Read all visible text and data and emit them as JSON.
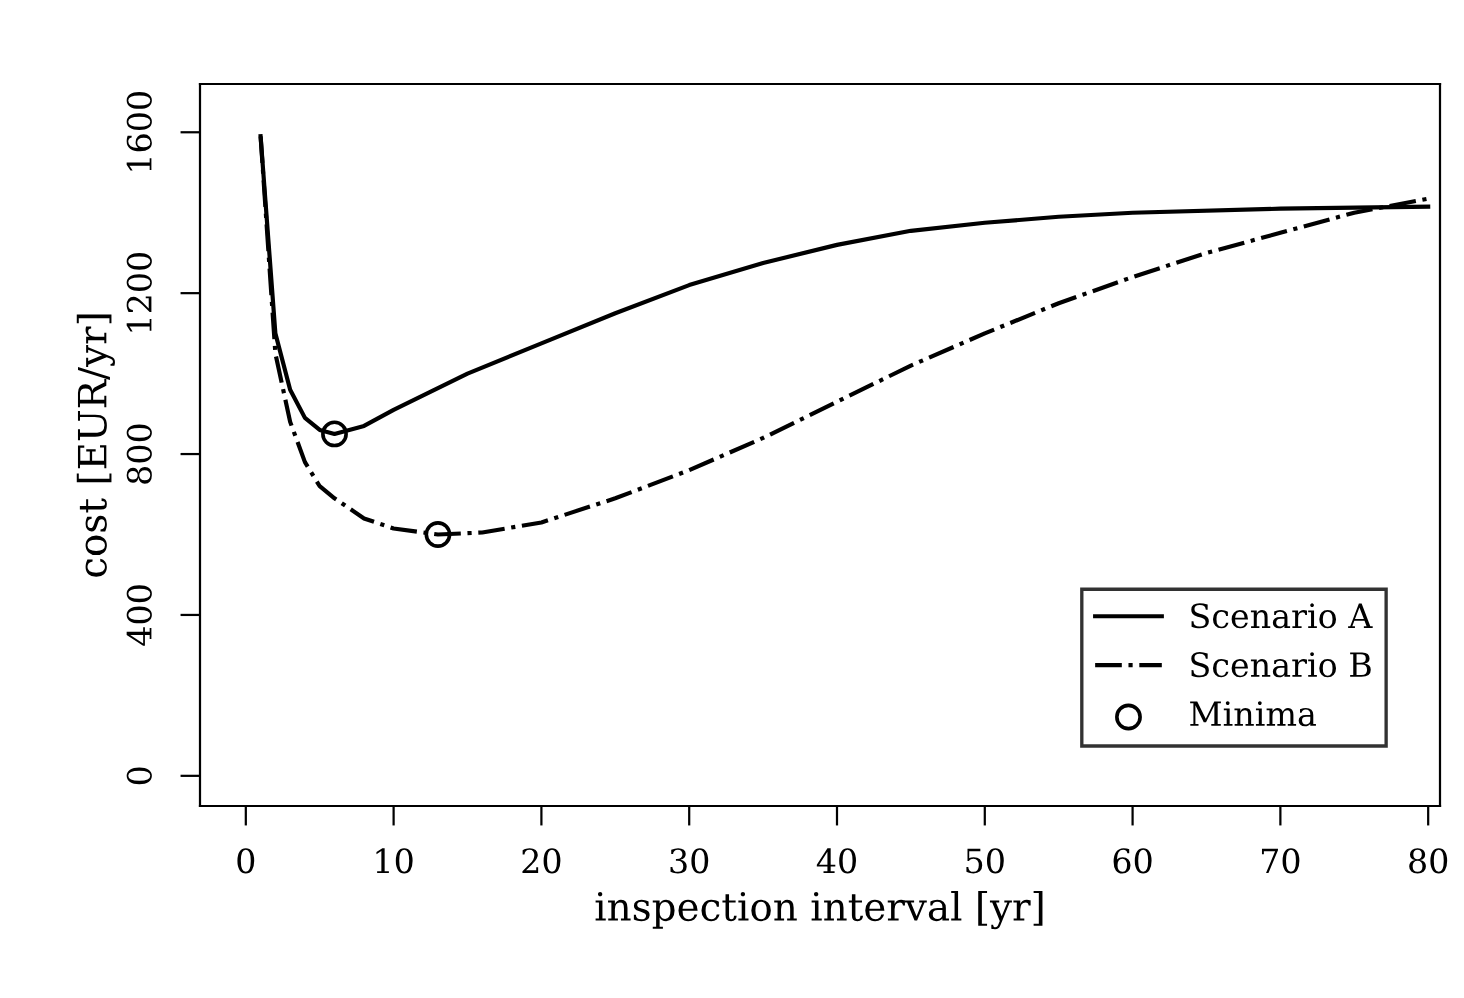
{
  "chart_data": {
    "type": "line",
    "xlabel": "inspection interval [yr]",
    "ylabel": "cost [EUR/yr]",
    "xlim": [
      -3.1,
      80.8
    ],
    "ylim": [
      -75,
      1720
    ],
    "xticks": [
      0,
      10,
      20,
      30,
      40,
      50,
      60,
      70,
      80
    ],
    "yticks": [
      0,
      400,
      800,
      1200,
      1600
    ],
    "grid": false,
    "legend": "bottom right",
    "series": [
      {
        "name": "Scenario A",
        "color": "#000000",
        "line_style": "solid",
        "marker": "none",
        "x": [
          1,
          2,
          3,
          4,
          5,
          6,
          8,
          10,
          15,
          20,
          25,
          30,
          35,
          40,
          45,
          50,
          55,
          60,
          70,
          80
        ],
        "values": [
          1590,
          1100,
          960,
          890,
          860,
          850,
          870,
          910,
          1000,
          1075,
          1150,
          1220,
          1275,
          1320,
          1355,
          1375,
          1390,
          1400,
          1410,
          1415
        ]
      },
      {
        "name": "Scenario B",
        "color": "#000000",
        "line_style": "dashdot",
        "marker": "none",
        "x": [
          1,
          2,
          3,
          4,
          5,
          6,
          8,
          10,
          13,
          16,
          20,
          25,
          30,
          35,
          40,
          45,
          50,
          55,
          60,
          65,
          70,
          75,
          80
        ],
        "values": [
          1590,
          1050,
          880,
          780,
          720,
          690,
          640,
          615,
          600,
          605,
          630,
          690,
          760,
          840,
          930,
          1020,
          1100,
          1175,
          1240,
          1300,
          1350,
          1400,
          1435
        ]
      },
      {
        "name": "Minima",
        "type": "scatter",
        "color": "#000000",
        "marker": "circle",
        "x": [
          6,
          13
        ],
        "values": [
          850,
          600
        ]
      }
    ]
  }
}
